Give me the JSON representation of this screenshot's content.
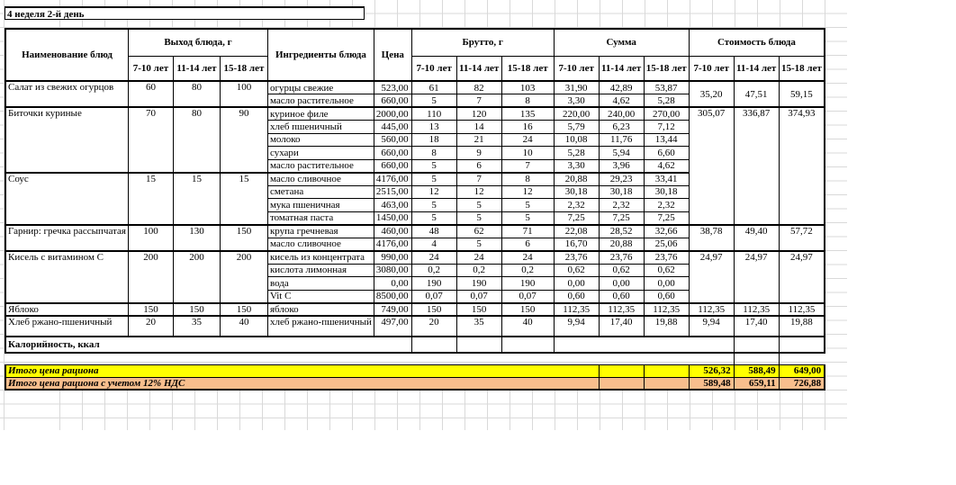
{
  "title": "4 неделя 2-й день",
  "columns": {
    "dish": "Наименование блюд",
    "output_group": "Выход блюда, г",
    "ingredients": "Ингредиенты блюда",
    "price": "Цена",
    "gross_group": "Брутто, г",
    "sum_group": "Сумма",
    "cost_group": "Стоимость блюда",
    "ages": [
      "7-10 лет",
      "11-14 лет",
      "15-18 лет"
    ]
  },
  "dishes": [
    {
      "name": "Салат из свежих огурцов",
      "output": [
        "60",
        "80",
        "100"
      ],
      "cost": {
        "values": [
          "35,20",
          "47,51",
          "59,15"
        ],
        "span": 2,
        "valign": "middle"
      },
      "ingredients": [
        {
          "name": "огурцы свежие",
          "price": "523,00",
          "gross": [
            "61",
            "82",
            "103"
          ],
          "sum": [
            "31,90",
            "42,89",
            "53,87"
          ]
        },
        {
          "name": "масло растительное",
          "price": "660,00",
          "gross": [
            "5",
            "7",
            "8"
          ],
          "sum": [
            "3,30",
            "4,62",
            "5,28"
          ]
        }
      ]
    },
    {
      "name": "Биточки куриные",
      "output": [
        "70",
        "80",
        "90"
      ],
      "cost": {
        "values": [
          "305,07",
          "336,87",
          "374,93"
        ],
        "span": 9,
        "valign": "top"
      },
      "ingredients": [
        {
          "name": "куриное филе",
          "price": "2000,00",
          "gross": [
            "110",
            "120",
            "135"
          ],
          "sum": [
            "220,00",
            "240,00",
            "270,00"
          ]
        },
        {
          "name": "хлеб пшеничный",
          "price": "445,00",
          "gross": [
            "13",
            "14",
            "16"
          ],
          "sum": [
            "5,79",
            "6,23",
            "7,12"
          ]
        },
        {
          "name": "молоко",
          "price": "560,00",
          "gross": [
            "18",
            "21",
            "24"
          ],
          "sum": [
            "10,08",
            "11,76",
            "13,44"
          ]
        },
        {
          "name": "сухари",
          "price": "660,00",
          "gross": [
            "8",
            "9",
            "10"
          ],
          "sum": [
            "5,28",
            "5,94",
            "6,60"
          ]
        },
        {
          "name": "масло растительное",
          "price": "660,00",
          "gross": [
            "5",
            "6",
            "7"
          ],
          "sum": [
            "3,30",
            "3,96",
            "4,62"
          ]
        }
      ]
    },
    {
      "name": "Соус",
      "output": [
        "15",
        "15",
        "15"
      ],
      "cost": null,
      "ingredients": [
        {
          "name": "масло сливочное",
          "price": "4176,00",
          "gross": [
            "5",
            "7",
            "8"
          ],
          "sum": [
            "20,88",
            "29,23",
            "33,41"
          ]
        },
        {
          "name": "сметана",
          "price": "2515,00",
          "gross": [
            "12",
            "12",
            "12"
          ],
          "sum": [
            "30,18",
            "30,18",
            "30,18"
          ]
        },
        {
          "name": "мука пшеничная",
          "price": "463,00",
          "gross": [
            "5",
            "5",
            "5"
          ],
          "sum": [
            "2,32",
            "2,32",
            "2,32"
          ]
        },
        {
          "name": "томатная паста",
          "price": "1450,00",
          "gross": [
            "5",
            "5",
            "5"
          ],
          "sum": [
            "7,25",
            "7,25",
            "7,25"
          ]
        }
      ]
    },
    {
      "name": "Гарнир: гречка рассыпчатая",
      "output": [
        "100",
        "130",
        "150"
      ],
      "cost": {
        "values": [
          "38,78",
          "49,40",
          "57,72"
        ],
        "span": 2,
        "valign": "top"
      },
      "ingredients": [
        {
          "name": "крупа гречневая",
          "price": "460,00",
          "gross": [
            "48",
            "62",
            "71"
          ],
          "sum": [
            "22,08",
            "28,52",
            "32,66"
          ]
        },
        {
          "name": "масло сливочное",
          "price": "4176,00",
          "gross": [
            "4",
            "5",
            "6"
          ],
          "sum": [
            "16,70",
            "20,88",
            "25,06"
          ]
        }
      ]
    },
    {
      "name": "Кисель с витамином С",
      "output": [
        "200",
        "200",
        "200"
      ],
      "cost": {
        "values": [
          "24,97",
          "24,97",
          "24,97"
        ],
        "span": 4,
        "valign": "top"
      },
      "ingredients": [
        {
          "name": "кисель из концентрата",
          "price": "990,00",
          "gross": [
            "24",
            "24",
            "24"
          ],
          "sum": [
            "23,76",
            "23,76",
            "23,76"
          ]
        },
        {
          "name": "кислота лимонная",
          "price": "3080,00",
          "gross": [
            "0,2",
            "0,2",
            "0,2"
          ],
          "sum": [
            "0,62",
            "0,62",
            "0,62"
          ]
        },
        {
          "name": "вода",
          "price": "0,00",
          "gross": [
            "190",
            "190",
            "190"
          ],
          "sum": [
            "0,00",
            "0,00",
            "0,00"
          ]
        },
        {
          "name": "Vit C",
          "price": "8500,00",
          "gross": [
            "0,07",
            "0,07",
            "0,07"
          ],
          "sum": [
            "0,60",
            "0,60",
            "0,60"
          ]
        }
      ]
    },
    {
      "name": "Яблоко",
      "output": [
        "150",
        "150",
        "150"
      ],
      "cost": {
        "values": [
          "112,35",
          "112,35",
          "112,35"
        ],
        "span": 1,
        "valign": "top"
      },
      "ingredients": [
        {
          "name": "яблоко",
          "price": "749,00",
          "gross": [
            "150",
            "150",
            "150"
          ],
          "sum": [
            "112,35",
            "112,35",
            "112,35"
          ]
        }
      ]
    },
    {
      "name": "Хлеб ржано-пшеничный",
      "output": [
        "20",
        "35",
        "40"
      ],
      "tall": true,
      "cost": {
        "values": [
          "9,94",
          "17,40",
          "19,88"
        ],
        "span": 1,
        "valign": "top"
      },
      "ingredients": [
        {
          "name": "хлеб ржано-пшеничный",
          "price": "497,00",
          "gross": [
            "20",
            "35",
            "40"
          ],
          "sum": [
            "9,94",
            "17,40",
            "19,88"
          ]
        }
      ]
    }
  ],
  "calories": {
    "label": "Калорийность, ккал"
  },
  "totals": [
    {
      "label": "Итого цена рациона",
      "values": [
        "526,32",
        "588,49",
        "649,00"
      ],
      "bg": "#FFFF00"
    },
    {
      "label": "Итого цена рациона с учетом 12% НДС",
      "values": [
        "589,48",
        "659,11",
        "726,88"
      ],
      "bg": "#F8BE8D"
    }
  ],
  "colors": {
    "total_row_1": "#FFFF00",
    "total_row_2": "#F8BE8D",
    "grid_line": "#D9D9D9",
    "border": "#000000"
  }
}
